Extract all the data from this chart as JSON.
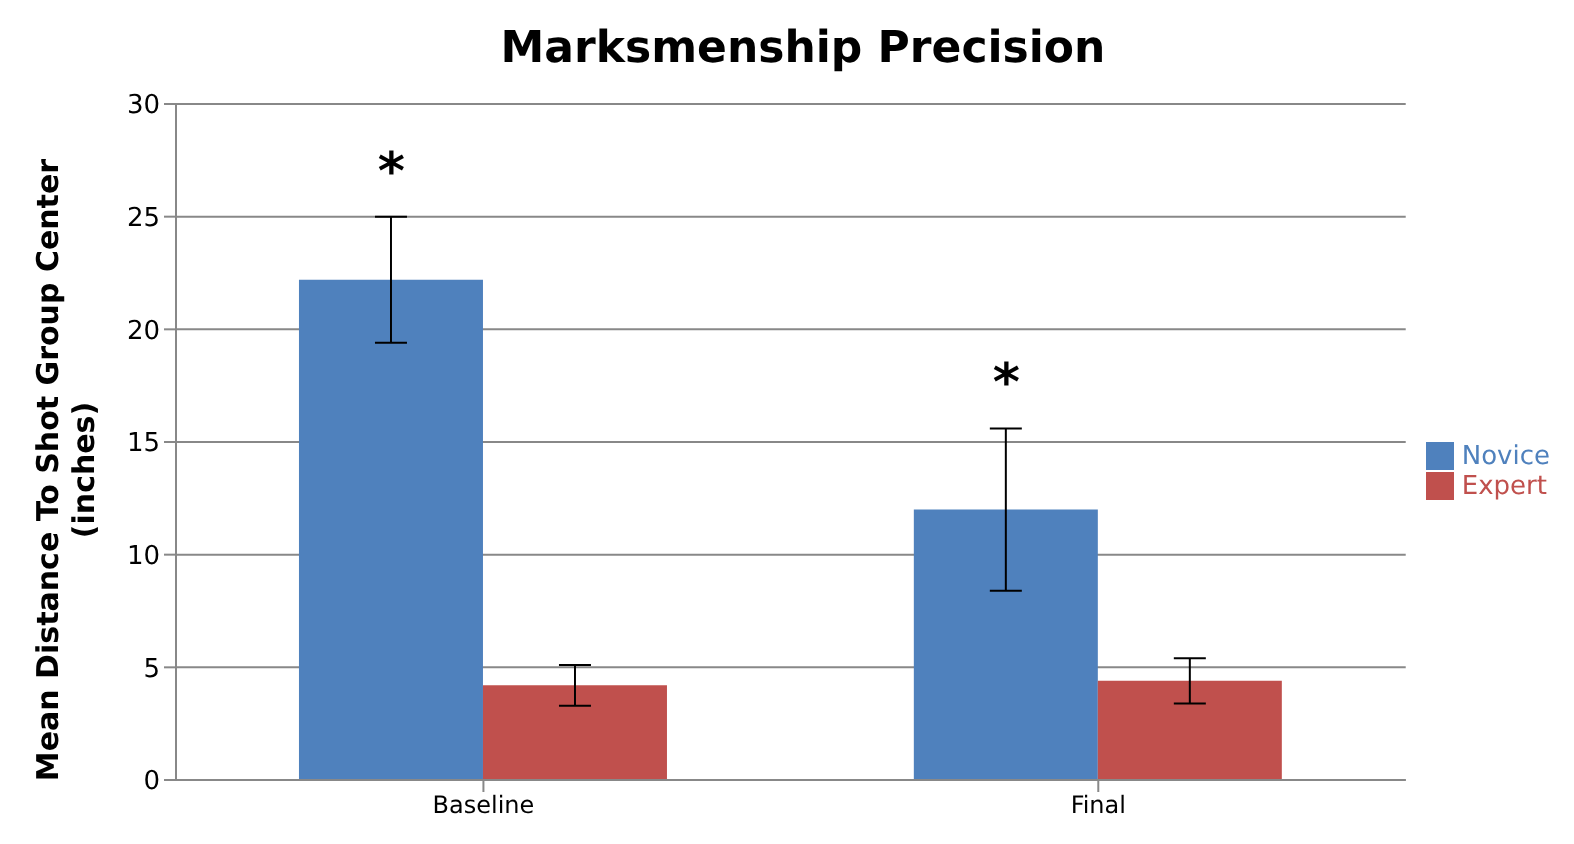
{
  "chart_data": {
    "type": "bar",
    "title": "Marksmenship Precision",
    "ylabel": "Mean Distance To Shot Group Center (inches)",
    "categories": [
      "Baseline",
      "Final"
    ],
    "series": [
      {
        "name": "Novice",
        "color": "#4f81bd",
        "values": [
          22.2,
          12.0
        ],
        "errors": [
          2.8,
          3.6
        ]
      },
      {
        "name": "Expert",
        "color": "#c0504d",
        "values": [
          4.2,
          4.4
        ],
        "errors": [
          0.9,
          1.0
        ]
      }
    ],
    "ylim": [
      0,
      30
    ],
    "yticks": [
      0,
      5,
      10,
      15,
      20,
      25,
      30
    ],
    "grid": "y",
    "legend": "right",
    "annotations": [
      "*",
      "*"
    ]
  }
}
